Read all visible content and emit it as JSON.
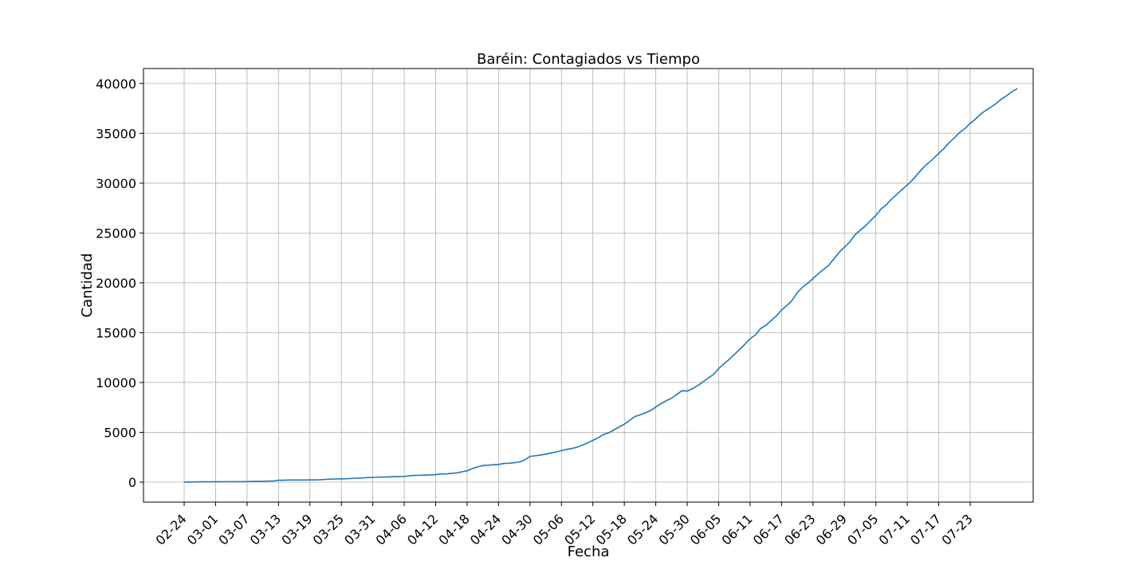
{
  "chart_data": {
    "type": "line",
    "title": "Baréin: Contagiados vs Tiempo",
    "xlabel": "Fecha",
    "ylabel": "Cantidad",
    "grid": true,
    "x_start": "2020-02-24",
    "x_tick_labels": [
      "02-24",
      "03-01",
      "03-07",
      "03-13",
      "03-19",
      "03-25",
      "03-31",
      "04-06",
      "04-12",
      "04-18",
      "04-24",
      "04-30",
      "05-06",
      "05-12",
      "05-18",
      "05-24",
      "05-30",
      "06-05",
      "06-11",
      "06-17",
      "06-23",
      "06-29",
      "07-05",
      "07-11",
      "07-17",
      "07-23"
    ],
    "y_ticks": [
      0,
      5000,
      10000,
      15000,
      20000,
      25000,
      30000,
      35000,
      40000
    ],
    "y_tick_labels": [
      "0",
      "5000",
      "10000",
      "15000",
      "20000",
      "25000",
      "30000",
      "35000",
      "40000"
    ],
    "ylim": [
      -2000,
      41500
    ],
    "line_color": "#1f77b4",
    "series": [
      {
        "values": [
          1,
          17,
          26,
          33,
          33,
          38,
          41,
          47,
          49,
          49,
          49,
          52,
          60,
          77,
          85,
          85,
          109,
          110,
          195,
          195,
          210,
          211,
          212,
          214,
          221,
          228,
          241,
          278,
          305,
          320,
          332,
          347,
          377,
          392,
          419,
          466,
          476,
          499,
          515,
          521,
          552,
          567,
          569,
          643,
          672,
          688,
          700,
          720,
          756,
          811,
          823,
          887,
          925,
          1040,
          1136,
          1361,
          1528,
          1671,
          1700,
          1740,
          1773,
          1881,
          1895,
          1952,
          2027,
          2217,
          2588,
          2647,
          2723,
          2811,
          2921,
          3040,
          3170,
          3284,
          3383,
          3506,
          3720,
          3934,
          4199,
          4444,
          4774,
          4941,
          5236,
          5531,
          5816,
          6198,
          6583,
          6747,
          6956,
          7184,
          7532,
          7888,
          8174,
          8414,
          8802,
          9171,
          9138,
          9366,
          9692,
          10052,
          10449,
          10793,
          11398,
          11871,
          12311,
          12815,
          13296,
          13835,
          14383,
          14763,
          15417,
          15731,
          16200,
          16667,
          17269,
          17713,
          18227,
          19013,
          19553,
          19961,
          20430,
          20916,
          21331,
          21764,
          22407,
          23062,
          23570,
          24081,
          24805,
          25267,
          25707,
          26239,
          26758,
          27414,
          27837,
          28410,
          28878,
          29367,
          29821,
          30321,
          30931,
          31528,
          32011,
          32470,
          33002,
          33476,
          34078,
          34560,
          35084,
          35480,
          36004,
          36422,
          36936,
          37304,
          37634,
          38013,
          38458,
          38791,
          39192,
          39482
        ]
      }
    ]
  }
}
